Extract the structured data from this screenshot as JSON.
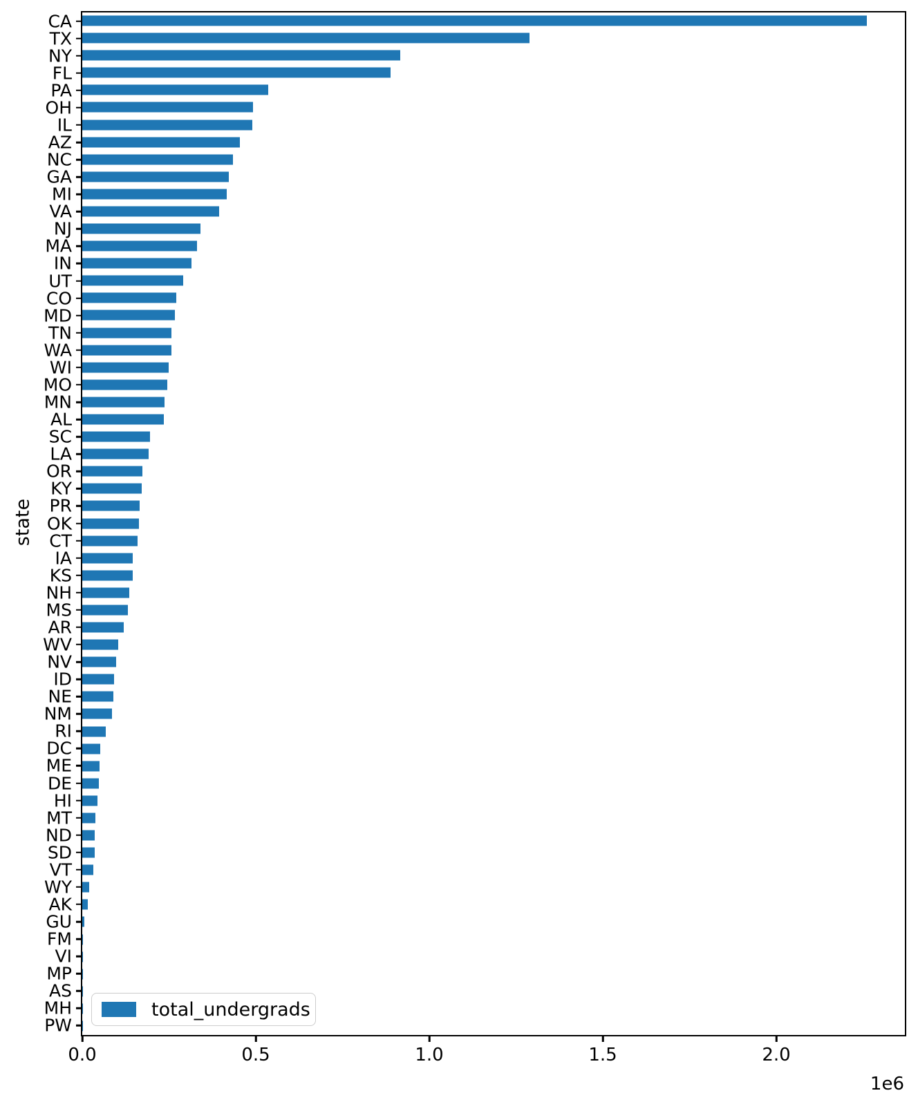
{
  "chart_data": {
    "type": "bar",
    "orientation": "horizontal",
    "title": "",
    "xlabel": "",
    "ylabel": "state",
    "legend": {
      "label": "total_undergrads",
      "position": "lower-left"
    },
    "bar_color": "#1f77b4",
    "grid": false,
    "x_axis": {
      "tick_values": [
        0,
        500000,
        1000000,
        1500000,
        2000000
      ],
      "tick_labels": [
        "0.0",
        "0.5",
        "1.0",
        "1.5",
        "2.0"
      ],
      "offset_label": "1e6",
      "range": [
        0,
        2368500
      ]
    },
    "categories": [
      "CA",
      "TX",
      "NY",
      "FL",
      "PA",
      "OH",
      "IL",
      "AZ",
      "NC",
      "GA",
      "MI",
      "VA",
      "NJ",
      "MA",
      "IN",
      "UT",
      "CO",
      "MD",
      "TN",
      "WA",
      "WI",
      "MO",
      "MN",
      "AL",
      "SC",
      "LA",
      "OR",
      "KY",
      "PR",
      "OK",
      "CT",
      "IA",
      "KS",
      "NH",
      "MS",
      "AR",
      "WV",
      "NV",
      "ID",
      "NE",
      "NM",
      "RI",
      "DC",
      "ME",
      "DE",
      "HI",
      "MT",
      "ND",
      "SD",
      "VT",
      "WY",
      "AK",
      "GU",
      "FM",
      "VI",
      "MP",
      "AS",
      "MH",
      "PW"
    ],
    "values": [
      2260000,
      1289000,
      916000,
      888000,
      536000,
      492000,
      490000,
      455000,
      434000,
      422000,
      417000,
      396000,
      341000,
      332000,
      316000,
      292000,
      272000,
      267000,
      258000,
      257000,
      249000,
      245000,
      237000,
      236000,
      197000,
      192000,
      174000,
      173000,
      167000,
      165000,
      160000,
      147000,
      146000,
      136000,
      132000,
      120000,
      104000,
      98000,
      92000,
      90000,
      86000,
      68000,
      52000,
      50000,
      48000,
      44000,
      38000,
      37500,
      37000,
      32000,
      21000,
      16000,
      6000,
      2000,
      1500,
      1200,
      900,
      700,
      400
    ]
  }
}
